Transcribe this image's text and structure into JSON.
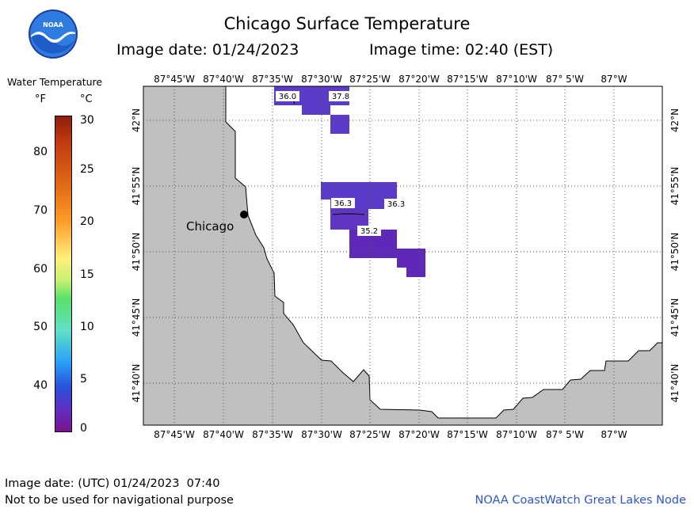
{
  "header": {
    "title": "Chicago Surface Temperature",
    "image_date": "Image date: 01/24/2023",
    "image_time": "Image time: 02:40 (EST)"
  },
  "legend": {
    "title": "Water Temperature",
    "unit_f": "°F",
    "unit_c": "°C",
    "f_ticks": [
      "80",
      "70",
      "60",
      "50",
      "40"
    ],
    "c_ticks": [
      "30",
      "25",
      "20",
      "15",
      "10",
      "5",
      "0"
    ]
  },
  "axes": {
    "lon_labels": [
      "87°45'W",
      "87°40'W",
      "87°35'W",
      "87°30'W",
      "87°25'W",
      "87°20'W",
      "87°15'W",
      "87°10'W",
      "87° 5'W",
      "87°W"
    ],
    "lat_labels": [
      "42°N",
      "41°55'N",
      "41°50'N",
      "41°45'N",
      "41°40'N"
    ]
  },
  "map": {
    "city": "Chicago",
    "temp_labels": [
      "36.0",
      "37.8",
      "36.3",
      "36.3",
      "35.2"
    ],
    "colors": {
      "land": "#c0c0c0",
      "water": "#ffffff",
      "temp_purple": "#5a3cc8",
      "temp_violet": "#6236c4",
      "temp_deep": "#6028b8",
      "grid": "#555555"
    }
  },
  "footer": {
    "utc_date": "Image date: (UTC) 01/24/2023  07:40",
    "warning": "Not to be used for navigational purpose",
    "credit": "NOAA CoastWatch Great Lakes Node"
  }
}
